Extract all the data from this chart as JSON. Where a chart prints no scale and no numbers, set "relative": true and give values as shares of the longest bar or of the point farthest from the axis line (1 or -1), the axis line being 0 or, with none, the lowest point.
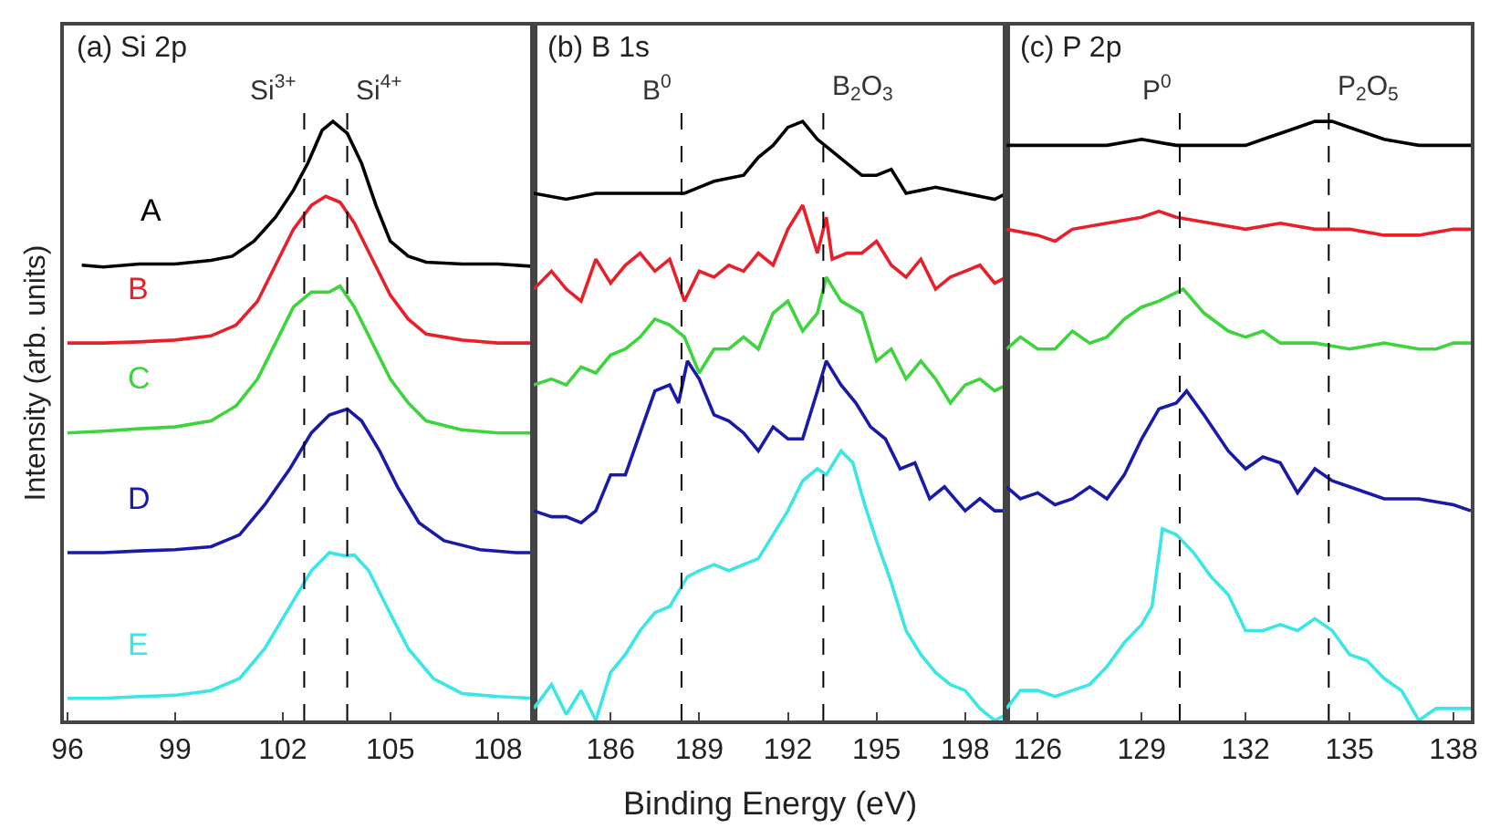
{
  "chart_data": [
    {
      "type": "line",
      "title": "(a) Si 2p",
      "ylabel": "Intensity (arb. units)",
      "relative": true,
      "xlim": [
        95.9,
        109
      ],
      "xticks": [
        96,
        99,
        102,
        105,
        108
      ],
      "ref_lines": [
        {
          "axis": "x",
          "value": 102.6,
          "label": "Si$^{3+}$",
          "line_style": "dashed",
          "color": "#000000"
        },
        {
          "axis": "x",
          "value": 103.8,
          "label": "Si$^{4+}$",
          "line_style": "dashed",
          "color": "#000000"
        }
      ],
      "series": [
        {
          "name": "A",
          "color": "#000000",
          "x": [
            96.4,
            97,
            98,
            99,
            100,
            100.6,
            101.2,
            101.8,
            102.3,
            102.7,
            103.1,
            103.4,
            103.8,
            104.2,
            104.6,
            105,
            105.5,
            106,
            107,
            108,
            109
          ],
          "values": [
            0.76,
            0.757,
            0.762,
            0.762,
            0.768,
            0.775,
            0.8,
            0.84,
            0.885,
            0.93,
            0.985,
            1.0,
            0.98,
            0.93,
            0.86,
            0.8,
            0.775,
            0.765,
            0.762,
            0.762,
            0.758
          ]
        },
        {
          "name": "B",
          "color": "#e8202a",
          "x": [
            96,
            97,
            98,
            99,
            100,
            100.7,
            101.3,
            101.8,
            102.3,
            102.8,
            103.2,
            103.6,
            104,
            104.5,
            105,
            105.5,
            106,
            107,
            108,
            109
          ],
          "values": [
            0.63,
            0.63,
            0.632,
            0.635,
            0.642,
            0.66,
            0.7,
            0.76,
            0.82,
            0.86,
            0.875,
            0.865,
            0.83,
            0.77,
            0.71,
            0.67,
            0.645,
            0.635,
            0.63,
            0.63
          ]
        },
        {
          "name": "C",
          "color": "#3ed43e",
          "x": [
            96,
            97,
            98,
            99,
            100,
            100.7,
            101.3,
            101.8,
            102.3,
            102.8,
            103.3,
            103.6,
            104,
            104.5,
            105,
            105.5,
            106,
            107,
            108,
            109
          ],
          "values": [
            0.48,
            0.483,
            0.487,
            0.49,
            0.5,
            0.525,
            0.57,
            0.63,
            0.69,
            0.715,
            0.715,
            0.725,
            0.69,
            0.63,
            0.57,
            0.53,
            0.5,
            0.485,
            0.48,
            0.48
          ]
        },
        {
          "name": "D",
          "color": "#1a1aa8",
          "x": [
            96,
            97,
            98,
            99,
            100,
            100.8,
            101.5,
            102.2,
            102.8,
            103.3,
            103.8,
            104.2,
            104.7,
            105.2,
            105.8,
            106.5,
            107.5,
            108.5,
            109
          ],
          "values": [
            0.28,
            0.28,
            0.283,
            0.285,
            0.29,
            0.31,
            0.36,
            0.42,
            0.48,
            0.51,
            0.52,
            0.5,
            0.45,
            0.39,
            0.33,
            0.3,
            0.285,
            0.28,
            0.28
          ]
        },
        {
          "name": "E",
          "color": "#3ae6e6",
          "x": [
            96,
            97,
            98,
            99,
            100,
            100.8,
            101.5,
            102.2,
            102.8,
            103.3,
            103.7,
            104,
            104.4,
            104.9,
            105.5,
            106.2,
            107,
            108,
            109
          ],
          "values": [
            0.037,
            0.037,
            0.04,
            0.042,
            0.05,
            0.07,
            0.12,
            0.19,
            0.25,
            0.28,
            0.275,
            0.276,
            0.25,
            0.19,
            0.12,
            0.07,
            0.045,
            0.04,
            0.037
          ]
        }
      ]
    },
    {
      "type": "line",
      "title": "(b) B 1s",
      "xlabel": "Binding Energy (eV)",
      "relative": true,
      "xlim": [
        183.4,
        199.4
      ],
      "xticks": [
        186,
        189,
        192,
        195,
        198
      ],
      "ref_lines": [
        {
          "axis": "x",
          "value": 188.4,
          "label": "B$^{0}$",
          "line_style": "dashed",
          "color": "#000000"
        },
        {
          "axis": "x",
          "value": 193.2,
          "label": "B$_{2}$O$_{3}$",
          "line_style": "dashed",
          "color": "#000000"
        }
      ],
      "series": [
        {
          "color": "#000000",
          "x": [
            183.4,
            184.5,
            185.5,
            186.5,
            187.5,
            188.5,
            189.5,
            190.5,
            191,
            191.5,
            192,
            192.5,
            193,
            193.5,
            194,
            194.5,
            195,
            195.5,
            196,
            197,
            198,
            199,
            199.4
          ],
          "values": [
            0.88,
            0.87,
            0.88,
            0.88,
            0.88,
            0.88,
            0.9,
            0.91,
            0.94,
            0.96,
            0.99,
            1.0,
            0.97,
            0.95,
            0.93,
            0.91,
            0.91,
            0.92,
            0.88,
            0.89,
            0.88,
            0.87,
            0.88
          ]
        },
        {
          "color": "#e8202a",
          "x": [
            183.4,
            184,
            184.5,
            185,
            185.5,
            186,
            186.5,
            187,
            187.5,
            188,
            188.5,
            189,
            189.5,
            190,
            190.5,
            191,
            191.5,
            192,
            192.5,
            193,
            193.3,
            193.5,
            194,
            194.5,
            195,
            195.5,
            196,
            196.5,
            197,
            197.5,
            198,
            198.5,
            199,
            199.4
          ],
          "values": [
            0.72,
            0.75,
            0.72,
            0.7,
            0.77,
            0.73,
            0.76,
            0.78,
            0.75,
            0.77,
            0.7,
            0.75,
            0.74,
            0.76,
            0.75,
            0.78,
            0.76,
            0.82,
            0.86,
            0.78,
            0.84,
            0.77,
            0.78,
            0.78,
            0.8,
            0.76,
            0.74,
            0.77,
            0.72,
            0.74,
            0.75,
            0.76,
            0.73,
            0.74
          ]
        },
        {
          "color": "#3ed43e",
          "x": [
            183.4,
            184,
            184.5,
            185,
            185.5,
            186,
            186.5,
            187,
            187.5,
            188,
            188.5,
            189,
            189.5,
            190,
            190.5,
            191,
            191.5,
            192,
            192.5,
            193,
            193.3,
            193.8,
            194.5,
            195,
            195.5,
            196,
            196.5,
            197,
            197.5,
            198,
            198.5,
            199,
            199.4
          ],
          "values": [
            0.56,
            0.57,
            0.56,
            0.59,
            0.58,
            0.61,
            0.62,
            0.64,
            0.67,
            0.66,
            0.64,
            0.58,
            0.62,
            0.62,
            0.64,
            0.62,
            0.68,
            0.7,
            0.65,
            0.68,
            0.74,
            0.7,
            0.68,
            0.6,
            0.62,
            0.57,
            0.6,
            0.57,
            0.53,
            0.56,
            0.57,
            0.55,
            0.56
          ]
        },
        {
          "color": "#1a1aa8",
          "x": [
            183.4,
            184,
            184.5,
            185,
            185.5,
            186,
            186.5,
            187,
            187.5,
            188,
            188.3,
            188.6,
            189,
            189.5,
            190,
            190.5,
            191,
            191.5,
            192,
            192.5,
            193,
            193.3,
            193.8,
            194.3,
            194.8,
            195.3,
            195.8,
            196.3,
            196.8,
            197.3,
            198,
            198.5,
            199,
            199.4
          ],
          "values": [
            0.35,
            0.34,
            0.34,
            0.33,
            0.35,
            0.41,
            0.41,
            0.48,
            0.55,
            0.56,
            0.53,
            0.6,
            0.57,
            0.51,
            0.5,
            0.48,
            0.45,
            0.49,
            0.47,
            0.47,
            0.55,
            0.6,
            0.56,
            0.53,
            0.49,
            0.47,
            0.42,
            0.43,
            0.37,
            0.39,
            0.35,
            0.37,
            0.35,
            0.35
          ]
        },
        {
          "color": "#3ae6e6",
          "x": [
            183.4,
            184,
            184.5,
            185,
            185.5,
            186,
            186.5,
            187,
            187.5,
            188,
            188.6,
            189,
            189.5,
            190,
            190.5,
            191,
            191.5,
            192,
            192.5,
            193,
            193.3,
            193.8,
            194.2,
            194.6,
            195,
            195.5,
            196,
            196.5,
            197,
            197.5,
            198,
            198.5,
            199,
            199.4
          ],
          "values": [
            0.02,
            0.06,
            0.01,
            0.05,
            0.0,
            0.08,
            0.11,
            0.15,
            0.18,
            0.19,
            0.24,
            0.25,
            0.26,
            0.25,
            0.26,
            0.27,
            0.31,
            0.35,
            0.4,
            0.42,
            0.41,
            0.45,
            0.43,
            0.36,
            0.3,
            0.23,
            0.15,
            0.11,
            0.08,
            0.06,
            0.05,
            0.02,
            0.0,
            0.01
          ]
        }
      ]
    },
    {
      "type": "line",
      "title": "(c) P 2p",
      "relative": true,
      "xlim": [
        125.1,
        138.5
      ],
      "xticks": [
        126,
        129,
        132,
        135,
        138
      ],
      "ref_lines": [
        {
          "axis": "x",
          "value": 130.1,
          "label": "P$^{0}$",
          "line_style": "dashed",
          "color": "#000000"
        },
        {
          "axis": "x",
          "value": 134.4,
          "label": "P$_{2}$O$_{5}$",
          "line_style": "dashed",
          "color": "#000000"
        }
      ],
      "series": [
        {
          "color": "#000000",
          "x": [
            125.1,
            126,
            127,
            128,
            129,
            130,
            131,
            132,
            132.5,
            133,
            133.5,
            134,
            134.5,
            135,
            135.5,
            136,
            137,
            138,
            138.5
          ],
          "values": [
            0.96,
            0.96,
            0.96,
            0.96,
            0.97,
            0.96,
            0.96,
            0.96,
            0.97,
            0.98,
            0.99,
            1.0,
            1.0,
            0.99,
            0.98,
            0.97,
            0.96,
            0.96,
            0.96
          ]
        },
        {
          "color": "#e8202a",
          "x": [
            125.1,
            126,
            126.5,
            127,
            128,
            129,
            129.5,
            130,
            131,
            132,
            133,
            134,
            135,
            136,
            137,
            138,
            138.5
          ],
          "values": [
            0.82,
            0.81,
            0.8,
            0.82,
            0.83,
            0.84,
            0.85,
            0.84,
            0.83,
            0.82,
            0.83,
            0.82,
            0.82,
            0.81,
            0.81,
            0.82,
            0.82
          ]
        },
        {
          "color": "#3ed43e",
          "x": [
            125.1,
            125.5,
            126,
            126.5,
            127,
            127.5,
            128,
            128.5,
            129,
            129.5,
            130.2,
            130.8,
            131.5,
            132,
            132.5,
            133,
            134,
            135,
            136,
            137,
            137.5,
            138,
            138.5
          ],
          "values": [
            0.62,
            0.64,
            0.62,
            0.62,
            0.65,
            0.63,
            0.64,
            0.67,
            0.69,
            0.7,
            0.72,
            0.68,
            0.65,
            0.64,
            0.65,
            0.63,
            0.63,
            0.62,
            0.63,
            0.62,
            0.62,
            0.63,
            0.63
          ]
        },
        {
          "color": "#1a1aa8",
          "x": [
            125.1,
            125.5,
            126,
            126.5,
            127,
            127.5,
            128,
            128.5,
            129,
            129.5,
            130,
            130.3,
            130.8,
            131.5,
            132,
            132.5,
            133,
            133.5,
            134,
            134.5,
            135,
            136,
            137,
            138,
            138.5
          ],
          "values": [
            0.39,
            0.37,
            0.38,
            0.36,
            0.37,
            0.39,
            0.37,
            0.41,
            0.47,
            0.52,
            0.53,
            0.55,
            0.51,
            0.45,
            0.42,
            0.44,
            0.43,
            0.38,
            0.42,
            0.4,
            0.39,
            0.37,
            0.37,
            0.36,
            0.35
          ]
        },
        {
          "color": "#3ae6e6",
          "x": [
            125.1,
            125.5,
            126,
            126.5,
            127,
            127.5,
            128,
            128.5,
            129,
            129.3,
            129.6,
            130,
            130.5,
            131,
            131.5,
            132,
            132.5,
            133,
            133.5,
            134,
            134.5,
            135,
            135.5,
            136,
            136.5,
            137,
            137.5,
            138,
            138.5
          ],
          "values": [
            0.02,
            0.05,
            0.05,
            0.04,
            0.05,
            0.06,
            0.09,
            0.13,
            0.16,
            0.19,
            0.32,
            0.31,
            0.28,
            0.24,
            0.21,
            0.15,
            0.15,
            0.16,
            0.15,
            0.17,
            0.15,
            0.11,
            0.1,
            0.07,
            0.05,
            0.0,
            0.02,
            0.02,
            0.02
          ]
        }
      ]
    }
  ]
}
